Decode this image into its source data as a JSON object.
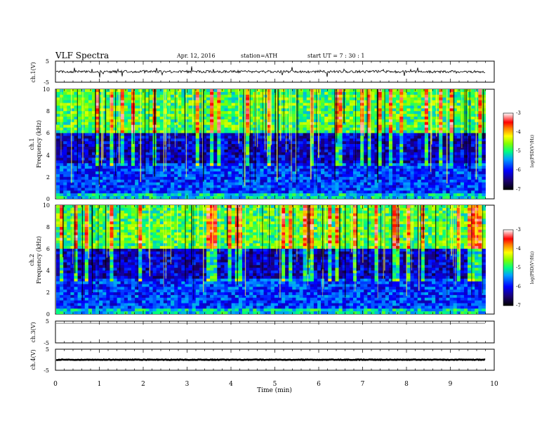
{
  "header": {
    "title": "VLF  Spectra",
    "date": "Apr. 12, 2016",
    "station": "station=ATH",
    "start": "start  UT  =    7  : 30 : 1"
  },
  "chart_data": [
    {
      "type": "line",
      "panel": "ch1-waveform",
      "ylabel": "ch.1(V)",
      "ylim": [
        -5,
        5
      ],
      "yticks": [
        "5",
        "-5"
      ],
      "xlim": [
        0,
        10
      ],
      "baseline": 0.0,
      "noise_amplitude": 0.6,
      "data_extent_min": 9.8
    },
    {
      "type": "heatmap",
      "panel": "ch1-spectrogram",
      "ylabel": [
        "ch.1",
        "Frequency  (kHz)"
      ],
      "ylim": [
        0,
        10
      ],
      "yticks": [
        "0",
        "2",
        "4",
        "6",
        "8",
        "10"
      ],
      "xlim": [
        0,
        10
      ],
      "data_extent_min": 9.8,
      "colorbar": {
        "label": "log(PSD(V²/Hz)",
        "range": [
          -7,
          -3
        ],
        "ticks": [
          "-3",
          "-4",
          "-5",
          "-6",
          "-7"
        ]
      }
    },
    {
      "type": "heatmap",
      "panel": "ch2-spectrogram",
      "ylabel": [
        "ch.2",
        "Frequency  (kHz)"
      ],
      "ylim": [
        0,
        10
      ],
      "yticks": [
        "0",
        "2",
        "4",
        "6",
        "8",
        "10"
      ],
      "xlim": [
        0,
        10
      ],
      "data_extent_min": 9.8,
      "colorbar": {
        "label": "log(PSD(V²/Hz)",
        "range": [
          -7,
          -3
        ],
        "ticks": [
          "-3",
          "-4",
          "-5",
          "-6",
          "-7"
        ]
      }
    },
    {
      "type": "line",
      "panel": "ch3-waveform",
      "ylabel": "ch.3(V)",
      "ylim": [
        -5,
        5
      ],
      "yticks": [
        "5",
        "-5"
      ],
      "xlim": [
        0,
        10
      ],
      "baseline": 4.0,
      "noise_amplitude": 0.0,
      "data_extent_min": 9.8
    },
    {
      "type": "line",
      "panel": "ch4-waveform",
      "ylabel": "ch.4(V)",
      "ylim": [
        -5,
        5
      ],
      "yticks": [
        "5",
        "-5"
      ],
      "xlim": [
        0,
        10
      ],
      "baseline": 0.0,
      "noise_amplitude": 0.15,
      "data_extent_min": 9.8
    }
  ],
  "xaxis": {
    "label": "Time  (min)",
    "ticks": [
      "0",
      "1",
      "2",
      "3",
      "4",
      "5",
      "6",
      "7",
      "8",
      "9",
      "10"
    ]
  }
}
